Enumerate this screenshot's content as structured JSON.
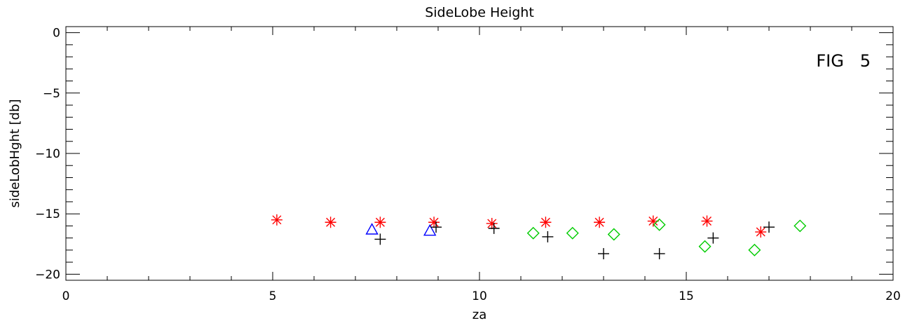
{
  "chart_data": {
    "type": "scatter",
    "title": "SideLobe Height",
    "xlabel": "za",
    "ylabel": "sideLobHght [db]",
    "annotation": "FIG   5",
    "xlim": [
      0,
      20
    ],
    "ylim": [
      -20.5,
      0.5
    ],
    "x_ticks": [
      0,
      5,
      10,
      15,
      20
    ],
    "y_ticks": [
      0,
      -5,
      -10,
      -15,
      -20
    ],
    "grid": false,
    "series": [
      {
        "marker": "asterisk",
        "color": "#ff0000",
        "points": [
          [
            5.1,
            -15.5
          ],
          [
            6.4,
            -15.7
          ],
          [
            7.6,
            -15.7
          ],
          [
            8.9,
            -15.7
          ],
          [
            10.3,
            -15.8
          ],
          [
            11.6,
            -15.7
          ],
          [
            12.9,
            -15.7
          ],
          [
            14.2,
            -15.6
          ],
          [
            15.5,
            -15.6
          ],
          [
            16.8,
            -16.5
          ]
        ]
      },
      {
        "marker": "triangle",
        "color": "#0000ff",
        "points": [
          [
            7.4,
            -16.3
          ],
          [
            8.8,
            -16.4
          ]
        ]
      },
      {
        "marker": "plus",
        "color": "#000000",
        "points": [
          [
            7.6,
            -17.1
          ],
          [
            8.95,
            -16.1
          ],
          [
            10.35,
            -16.2
          ],
          [
            11.65,
            -16.9
          ],
          [
            13.0,
            -18.3
          ],
          [
            14.35,
            -18.3
          ],
          [
            15.65,
            -17.0
          ],
          [
            17.0,
            -16.1
          ]
        ]
      },
      {
        "marker": "diamond",
        "color": "#00cc00",
        "points": [
          [
            11.3,
            -16.6
          ],
          [
            12.25,
            -16.6
          ],
          [
            13.25,
            -16.7
          ],
          [
            14.35,
            -15.9
          ],
          [
            15.45,
            -17.7
          ],
          [
            16.65,
            -18.0
          ],
          [
            17.75,
            -16.0
          ]
        ]
      }
    ]
  }
}
